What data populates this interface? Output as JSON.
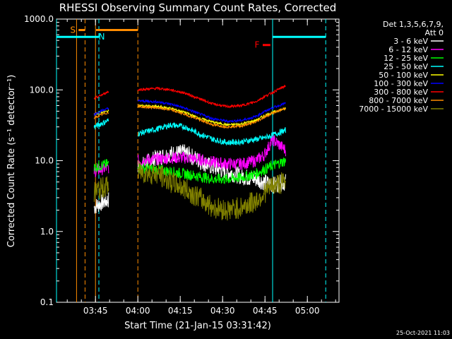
{
  "chart_data": {
    "type": "line",
    "title": "RHESSI Observing Summary Count Rates, Corrected",
    "xlabel": "Start Time (21-Jan-15 03:31:42)",
    "ylabel": "Corrected Count Rate (s⁻¹ detector⁻¹)",
    "yscale": "log",
    "ylim": [
      0.1,
      1000.0
    ],
    "xlim_minutes": [
      -0.5,
      99.5
    ],
    "x_ticks": [
      {
        "t": 13.3,
        "label": "03:45"
      },
      {
        "t": 28.3,
        "label": "04:00"
      },
      {
        "t": 43.3,
        "label": "04:15"
      },
      {
        "t": 58.3,
        "label": "04:30"
      },
      {
        "t": 73.3,
        "label": "04:45"
      },
      {
        "t": 88.3,
        "label": "05:00"
      }
    ],
    "y_ticks": [
      {
        "v": 0.1,
        "label": "0.1"
      },
      {
        "v": 1.0,
        "label": "1.0"
      },
      {
        "v": 10.0,
        "label": "10.0"
      },
      {
        "v": 100.0,
        "label": "100.0"
      },
      {
        "v": 1000.0,
        "label": "1000.0"
      }
    ],
    "legend": {
      "header": [
        "Det 1,3,5,6,7,9,",
        "Att 0"
      ],
      "position": "right"
    },
    "segments": [
      [
        12.8,
        18.0
      ],
      [
        28.3,
        80.7
      ]
    ],
    "series": [
      {
        "name": "3 - 6 keV",
        "color": "#ffffff",
        "x": [
          12.8,
          15,
          18,
          28.3,
          35,
          40,
          45,
          50,
          55,
          60,
          65,
          70,
          73,
          76,
          80.7
        ],
        "y": [
          2.2,
          2.5,
          2.8,
          8,
          11,
          12.5,
          13,
          10,
          8,
          7,
          6,
          5.5,
          5,
          4.5,
          5
        ]
      },
      {
        "name": "6 - 12 keV",
        "color": "#ff00ff",
        "x": [
          12.8,
          15,
          18,
          28.3,
          35,
          40,
          45,
          50,
          55,
          60,
          65,
          70,
          73,
          76,
          80.7
        ],
        "y": [
          7,
          7.5,
          8,
          10,
          10.5,
          11,
          11,
          10.5,
          9.5,
          9,
          9,
          10,
          12,
          20,
          14
        ]
      },
      {
        "name": "12 - 25 keV",
        "color": "#00ff00",
        "x": [
          12.8,
          15,
          18,
          28.3,
          35,
          40,
          45,
          50,
          55,
          60,
          65,
          70,
          73,
          76,
          80.7
        ],
        "y": [
          8,
          8.5,
          9,
          8,
          7.5,
          7,
          6.5,
          6,
          5.5,
          5.5,
          5.8,
          6.5,
          7.5,
          8.5,
          10
        ]
      },
      {
        "name": "25 - 50 keV",
        "color": "#00ffff",
        "x": [
          12.8,
          15,
          18,
          28.3,
          35,
          40,
          45,
          50,
          55,
          60,
          65,
          70,
          73,
          76,
          80.7
        ],
        "y": [
          30,
          33,
          37,
          24,
          28,
          32,
          30,
          24,
          20,
          18,
          18.5,
          20,
          21,
          23,
          27
        ]
      },
      {
        "name": "50 - 100 keV",
        "color": "#ffff00",
        "x": [
          12.8,
          15,
          18,
          28.3,
          35,
          40,
          45,
          50,
          55,
          60,
          65,
          70,
          73,
          76,
          80.7
        ],
        "y": [
          45,
          48,
          50,
          60,
          58,
          55,
          48,
          40,
          35,
          32,
          33,
          37,
          43,
          48,
          55
        ]
      },
      {
        "name": "100 - 300 keV",
        "color": "#0000ff",
        "x": [
          12.8,
          15,
          18,
          28.3,
          35,
          40,
          45,
          50,
          55,
          60,
          65,
          70,
          73,
          76,
          80.7
        ],
        "y": [
          45,
          50,
          55,
          70,
          68,
          63,
          55,
          46,
          39,
          36,
          37,
          42,
          49,
          56,
          65
        ]
      },
      {
        "name": "300 - 800 keV",
        "color": "#ff0000",
        "x": [
          12.8,
          15,
          18,
          28.3,
          35,
          40,
          45,
          50,
          55,
          60,
          65,
          70,
          73,
          76,
          80.7
        ],
        "y": [
          75,
          83,
          95,
          100,
          105,
          100,
          90,
          75,
          63,
          58,
          60,
          68,
          80,
          92,
          115
        ]
      },
      {
        "name": "800 - 7000 keV",
        "color": "#ff8c00",
        "x": [
          12.8,
          15,
          18,
          28.3,
          35,
          40,
          45,
          50,
          55,
          60,
          65,
          70,
          73,
          76,
          80.7
        ],
        "y": [
          40,
          44,
          48,
          58,
          56,
          52,
          45,
          38,
          32,
          30,
          31,
          35,
          41,
          47,
          55
        ]
      },
      {
        "name": "7000 - 15000 keV",
        "color": "#808000",
        "x": [
          12.8,
          15,
          18,
          28.3,
          35,
          40,
          45,
          50,
          55,
          60,
          65,
          70,
          73,
          76,
          80.7
        ],
        "y": [
          3.5,
          4,
          4.5,
          7,
          6.5,
          5,
          4,
          3,
          2.2,
          2,
          2.2,
          2.7,
          3.5,
          4.5,
          5
        ]
      }
    ],
    "annotations": [
      {
        "text": "S",
        "t_start": 7.3,
        "t_end": 9.6,
        "y": 700,
        "color": "#ff8c00"
      },
      {
        "text": "N",
        "t_start": -0.5,
        "t_end": 14.5,
        "y": 560,
        "color": "#00ffff",
        "label_t": 15.5
      },
      {
        "text": "",
        "t_start": 13.5,
        "t_end": 28.3,
        "y": 700,
        "color": "#ff8c00"
      },
      {
        "text": "F",
        "t_start": 72.5,
        "t_end": 75.2,
        "y": 430,
        "color": "#ff0000"
      },
      {
        "text": "",
        "t_start": 76.0,
        "t_end": 94.8,
        "y": 560,
        "color": "#00ffff"
      }
    ],
    "vlines": [
      {
        "t": -0.5,
        "color": "#00ffff",
        "style": "solid"
      },
      {
        "t": 6.6,
        "color": "#ff8c00",
        "style": "solid"
      },
      {
        "t": 9.6,
        "color": "#ff8c00",
        "style": "dashed"
      },
      {
        "t": 13.3,
        "color": "#ff8c00",
        "style": "solid"
      },
      {
        "t": 14.5,
        "color": "#00ffff",
        "style": "dashed"
      },
      {
        "t": 28.3,
        "color": "#ff8c00",
        "style": "dashed"
      },
      {
        "t": 76.0,
        "color": "#00ffff",
        "style": "solid"
      },
      {
        "t": 94.8,
        "color": "#00ffff",
        "style": "dashed"
      }
    ],
    "grid": false
  },
  "footer": "25-Oct-2021 11:03"
}
